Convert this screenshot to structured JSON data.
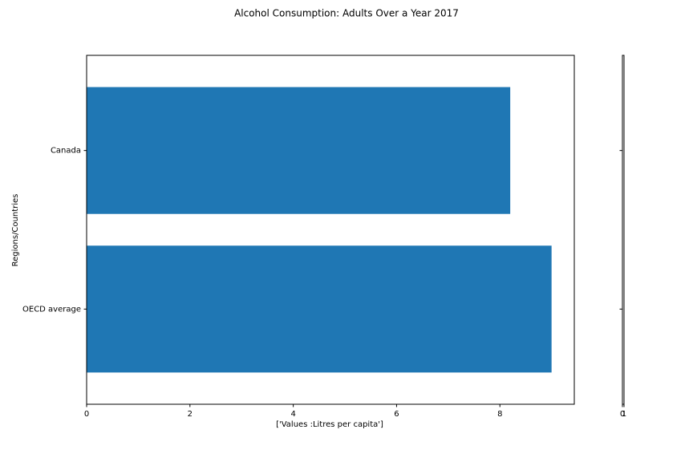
{
  "chart_data": [
    {
      "type": "bar",
      "orientation": "horizontal",
      "title": "Alcohol Consumption: Adults Over a Year 2017",
      "x_label": "['Values :Litres per capita']",
      "y_label": "Regions/Countries",
      "categories": [
        "Canada",
        "OECD average"
      ],
      "values": [
        8.2,
        9.0
      ],
      "color": "#1f77b4",
      "xlim": [
        0,
        9.44
      ],
      "xticks": [
        0,
        2,
        4,
        6,
        8
      ]
    },
    {
      "type": "empty",
      "xlim": [
        0,
        1
      ],
      "xticks": [
        0,
        1
      ]
    }
  ]
}
